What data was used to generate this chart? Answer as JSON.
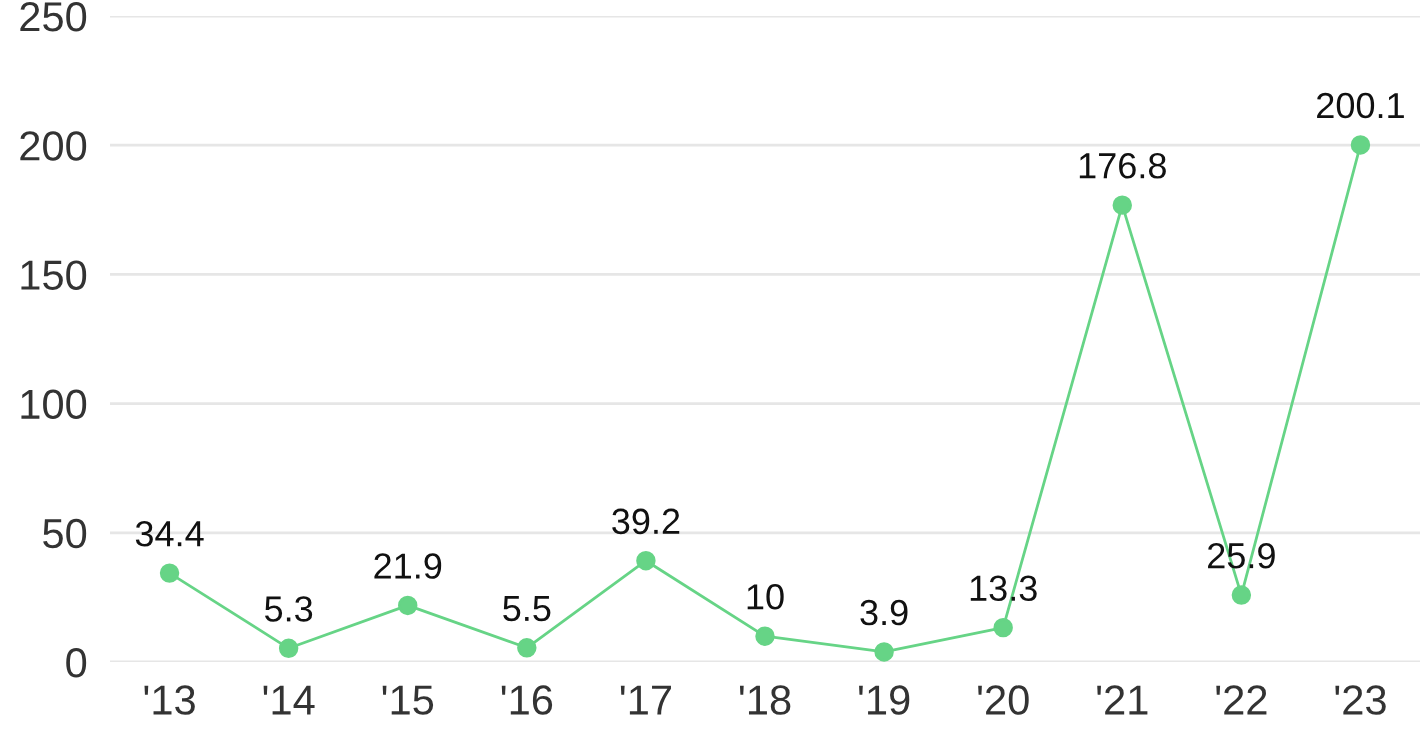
{
  "chart_data": {
    "type": "line",
    "categories": [
      "'13",
      "'14",
      "'15",
      "'16",
      "'17",
      "'18",
      "'19",
      "'20",
      "'21",
      "'22",
      "'23"
    ],
    "series": [
      {
        "color": "#66d486",
        "values": [
          34.4,
          5.3,
          21.9,
          5.5,
          39.2,
          10,
          3.9,
          13.3,
          176.8,
          25.9,
          200.1
        ]
      }
    ],
    "ylim": [
      0,
      250
    ],
    "yticks": [
      0,
      50,
      100,
      150,
      200,
      250
    ],
    "grid": "y",
    "marker": "circle",
    "line_style": "solid",
    "data_labels": true
  }
}
